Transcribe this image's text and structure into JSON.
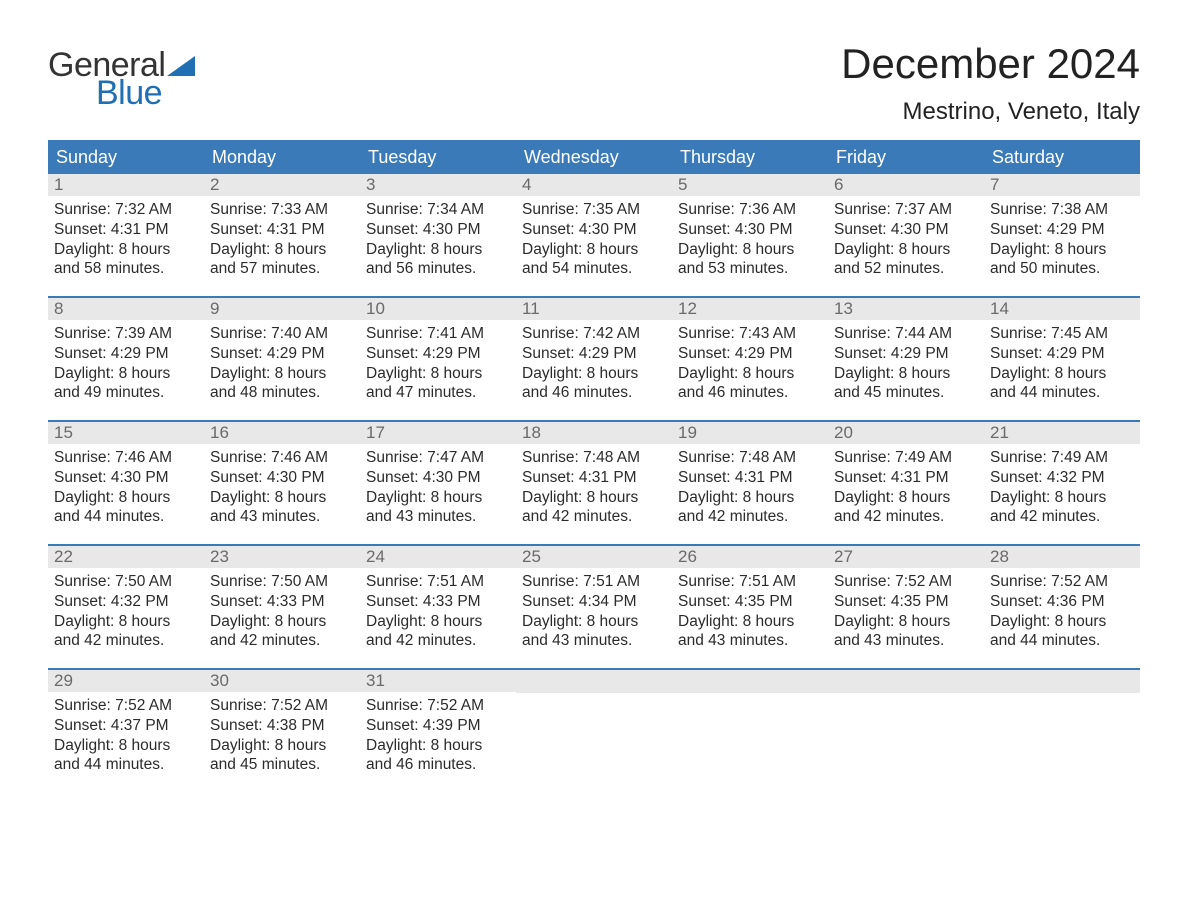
{
  "brand": {
    "word1": "General",
    "word2": "Blue",
    "word1_color": "#333333",
    "word2_color": "#1f6fb2",
    "triangle_color": "#1f6fb2"
  },
  "title": "December 2024",
  "location": "Mestrino, Veneto, Italy",
  "colors": {
    "header_bg": "#3a7ab8",
    "header_text": "#ffffff",
    "daynum_bg": "#e8e8e8",
    "daynum_text": "#6a6a6a",
    "body_text": "#2b2b2b",
    "row_border": "#3a7ab8",
    "page_bg": "#ffffff"
  },
  "typography": {
    "title_fontsize": 42,
    "location_fontsize": 24,
    "header_fontsize": 18,
    "daynum_fontsize": 17,
    "body_fontsize": 15.5,
    "logo_fontsize": 34
  },
  "weekday_headers": [
    "Sunday",
    "Monday",
    "Tuesday",
    "Wednesday",
    "Thursday",
    "Friday",
    "Saturday"
  ],
  "weeks": [
    [
      {
        "n": "1",
        "sunrise": "Sunrise: 7:32 AM",
        "sunset": "Sunset: 4:31 PM",
        "d1": "Daylight: 8 hours",
        "d2": "and 58 minutes."
      },
      {
        "n": "2",
        "sunrise": "Sunrise: 7:33 AM",
        "sunset": "Sunset: 4:31 PM",
        "d1": "Daylight: 8 hours",
        "d2": "and 57 minutes."
      },
      {
        "n": "3",
        "sunrise": "Sunrise: 7:34 AM",
        "sunset": "Sunset: 4:30 PM",
        "d1": "Daylight: 8 hours",
        "d2": "and 56 minutes."
      },
      {
        "n": "4",
        "sunrise": "Sunrise: 7:35 AM",
        "sunset": "Sunset: 4:30 PM",
        "d1": "Daylight: 8 hours",
        "d2": "and 54 minutes."
      },
      {
        "n": "5",
        "sunrise": "Sunrise: 7:36 AM",
        "sunset": "Sunset: 4:30 PM",
        "d1": "Daylight: 8 hours",
        "d2": "and 53 minutes."
      },
      {
        "n": "6",
        "sunrise": "Sunrise: 7:37 AM",
        "sunset": "Sunset: 4:30 PM",
        "d1": "Daylight: 8 hours",
        "d2": "and 52 minutes."
      },
      {
        "n": "7",
        "sunrise": "Sunrise: 7:38 AM",
        "sunset": "Sunset: 4:29 PM",
        "d1": "Daylight: 8 hours",
        "d2": "and 50 minutes."
      }
    ],
    [
      {
        "n": "8",
        "sunrise": "Sunrise: 7:39 AM",
        "sunset": "Sunset: 4:29 PM",
        "d1": "Daylight: 8 hours",
        "d2": "and 49 minutes."
      },
      {
        "n": "9",
        "sunrise": "Sunrise: 7:40 AM",
        "sunset": "Sunset: 4:29 PM",
        "d1": "Daylight: 8 hours",
        "d2": "and 48 minutes."
      },
      {
        "n": "10",
        "sunrise": "Sunrise: 7:41 AM",
        "sunset": "Sunset: 4:29 PM",
        "d1": "Daylight: 8 hours",
        "d2": "and 47 minutes."
      },
      {
        "n": "11",
        "sunrise": "Sunrise: 7:42 AM",
        "sunset": "Sunset: 4:29 PM",
        "d1": "Daylight: 8 hours",
        "d2": "and 46 minutes."
      },
      {
        "n": "12",
        "sunrise": "Sunrise: 7:43 AM",
        "sunset": "Sunset: 4:29 PM",
        "d1": "Daylight: 8 hours",
        "d2": "and 46 minutes."
      },
      {
        "n": "13",
        "sunrise": "Sunrise: 7:44 AM",
        "sunset": "Sunset: 4:29 PM",
        "d1": "Daylight: 8 hours",
        "d2": "and 45 minutes."
      },
      {
        "n": "14",
        "sunrise": "Sunrise: 7:45 AM",
        "sunset": "Sunset: 4:29 PM",
        "d1": "Daylight: 8 hours",
        "d2": "and 44 minutes."
      }
    ],
    [
      {
        "n": "15",
        "sunrise": "Sunrise: 7:46 AM",
        "sunset": "Sunset: 4:30 PM",
        "d1": "Daylight: 8 hours",
        "d2": "and 44 minutes."
      },
      {
        "n": "16",
        "sunrise": "Sunrise: 7:46 AM",
        "sunset": "Sunset: 4:30 PM",
        "d1": "Daylight: 8 hours",
        "d2": "and 43 minutes."
      },
      {
        "n": "17",
        "sunrise": "Sunrise: 7:47 AM",
        "sunset": "Sunset: 4:30 PM",
        "d1": "Daylight: 8 hours",
        "d2": "and 43 minutes."
      },
      {
        "n": "18",
        "sunrise": "Sunrise: 7:48 AM",
        "sunset": "Sunset: 4:31 PM",
        "d1": "Daylight: 8 hours",
        "d2": "and 42 minutes."
      },
      {
        "n": "19",
        "sunrise": "Sunrise: 7:48 AM",
        "sunset": "Sunset: 4:31 PM",
        "d1": "Daylight: 8 hours",
        "d2": "and 42 minutes."
      },
      {
        "n": "20",
        "sunrise": "Sunrise: 7:49 AM",
        "sunset": "Sunset: 4:31 PM",
        "d1": "Daylight: 8 hours",
        "d2": "and 42 minutes."
      },
      {
        "n": "21",
        "sunrise": "Sunrise: 7:49 AM",
        "sunset": "Sunset: 4:32 PM",
        "d1": "Daylight: 8 hours",
        "d2": "and 42 minutes."
      }
    ],
    [
      {
        "n": "22",
        "sunrise": "Sunrise: 7:50 AM",
        "sunset": "Sunset: 4:32 PM",
        "d1": "Daylight: 8 hours",
        "d2": "and 42 minutes."
      },
      {
        "n": "23",
        "sunrise": "Sunrise: 7:50 AM",
        "sunset": "Sunset: 4:33 PM",
        "d1": "Daylight: 8 hours",
        "d2": "and 42 minutes."
      },
      {
        "n": "24",
        "sunrise": "Sunrise: 7:51 AM",
        "sunset": "Sunset: 4:33 PM",
        "d1": "Daylight: 8 hours",
        "d2": "and 42 minutes."
      },
      {
        "n": "25",
        "sunrise": "Sunrise: 7:51 AM",
        "sunset": "Sunset: 4:34 PM",
        "d1": "Daylight: 8 hours",
        "d2": "and 43 minutes."
      },
      {
        "n": "26",
        "sunrise": "Sunrise: 7:51 AM",
        "sunset": "Sunset: 4:35 PM",
        "d1": "Daylight: 8 hours",
        "d2": "and 43 minutes."
      },
      {
        "n": "27",
        "sunrise": "Sunrise: 7:52 AM",
        "sunset": "Sunset: 4:35 PM",
        "d1": "Daylight: 8 hours",
        "d2": "and 43 minutes."
      },
      {
        "n": "28",
        "sunrise": "Sunrise: 7:52 AM",
        "sunset": "Sunset: 4:36 PM",
        "d1": "Daylight: 8 hours",
        "d2": "and 44 minutes."
      }
    ],
    [
      {
        "n": "29",
        "sunrise": "Sunrise: 7:52 AM",
        "sunset": "Sunset: 4:37 PM",
        "d1": "Daylight: 8 hours",
        "d2": "and 44 minutes."
      },
      {
        "n": "30",
        "sunrise": "Sunrise: 7:52 AM",
        "sunset": "Sunset: 4:38 PM",
        "d1": "Daylight: 8 hours",
        "d2": "and 45 minutes."
      },
      {
        "n": "31",
        "sunrise": "Sunrise: 7:52 AM",
        "sunset": "Sunset: 4:39 PM",
        "d1": "Daylight: 8 hours",
        "d2": "and 46 minutes."
      },
      null,
      null,
      null,
      null
    ]
  ]
}
